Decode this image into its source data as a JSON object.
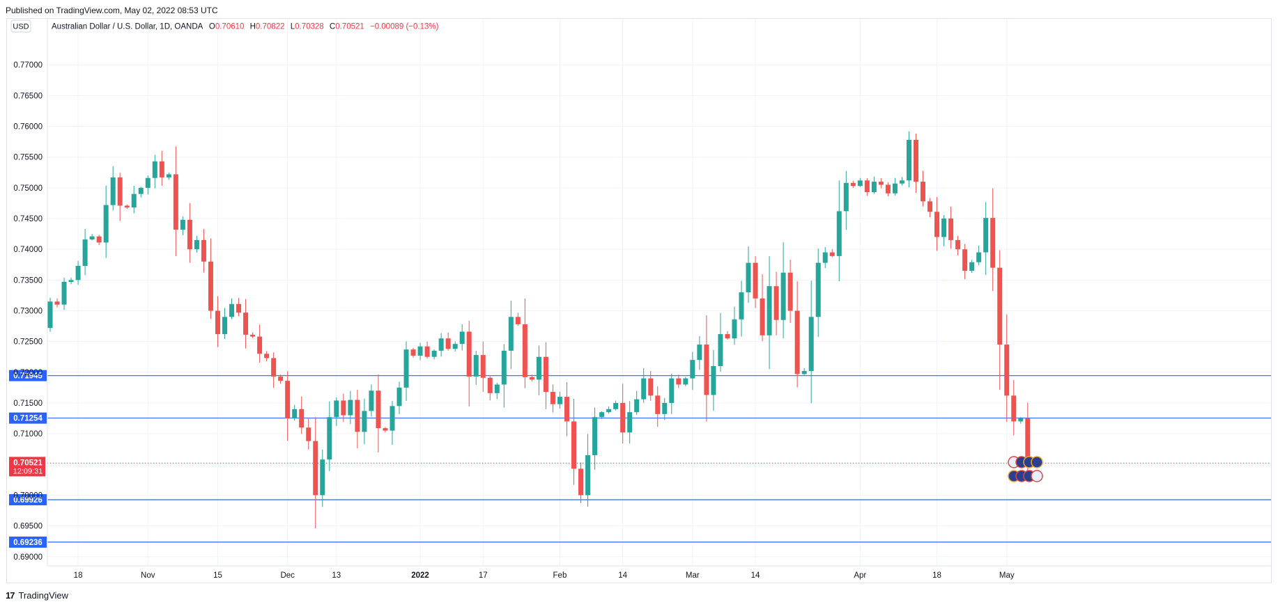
{
  "header": {
    "published": "Published on TradingView.com, May 02, 2022 08:53 UTC"
  },
  "footer": {
    "logo_glyph": "17",
    "brand": "TradingView"
  },
  "chart_data": {
    "type": "candlestick",
    "currency_badge": "USD",
    "title": "Australian Dollar / U.S. Dollar, 1D, OANDA",
    "ohlc": {
      "o_label": "O",
      "o": "0.70610",
      "h_label": "H",
      "h": "0.70822",
      "l_label": "L",
      "l": "0.70328",
      "c_label": "C",
      "c": "0.70521",
      "change": "−0.00089 (−0.13%)"
    },
    "ylim": [
      0.6885,
      0.7775
    ],
    "y_ticks": [
      "0.77000",
      "0.76500",
      "0.76000",
      "0.75500",
      "0.75000",
      "0.74500",
      "0.74000",
      "0.73500",
      "0.73000",
      "0.72500",
      "0.72000",
      "0.71500",
      "0.71000",
      "0.70500",
      "0.70000",
      "0.69500",
      "0.69000"
    ],
    "x_ticks": [
      {
        "label": "18",
        "i": 4
      },
      {
        "label": "Nov",
        "i": 14
      },
      {
        "label": "15",
        "i": 24
      },
      {
        "label": "Dec",
        "i": 34
      },
      {
        "label": "13",
        "i": 41
      },
      {
        "label": "2022",
        "i": 53
      },
      {
        "label": "17",
        "i": 62
      },
      {
        "label": "Feb",
        "i": 73
      },
      {
        "label": "14",
        "i": 82
      },
      {
        "label": "Mar",
        "i": 92
      },
      {
        "label": "14",
        "i": 101
      },
      {
        "label": "Apr",
        "i": 116
      },
      {
        "label": "18",
        "i": 127
      },
      {
        "label": "May",
        "i": 137
      }
    ],
    "horizontal_lines": [
      {
        "value": 0.71945,
        "label": "0.71945",
        "color": "#2962ff"
      },
      {
        "value": 0.71254,
        "label": "0.71254",
        "color": "#2962ff"
      },
      {
        "value": 0.69926,
        "label": "0.69926",
        "color": "#2962ff"
      },
      {
        "value": 0.69236,
        "label": "0.69236",
        "color": "#2962ff"
      }
    ],
    "last_price": {
      "value": 0.70521,
      "label": "0.70521",
      "countdown": "12:09:31",
      "color": "#f23645"
    },
    "colors": {
      "up": "#26a69a",
      "down": "#ef5350",
      "grid": "#f0f3fa",
      "axis_text": "#131722"
    },
    "closes": [
      0.7315,
      0.731,
      0.7347,
      0.735,
      0.7373,
      0.7416,
      0.7421,
      0.7411,
      0.7472,
      0.7517,
      0.7471,
      0.7468,
      0.749,
      0.75,
      0.7516,
      0.7543,
      0.7517,
      0.7522,
      0.7432,
      0.7448,
      0.74,
      0.7415,
      0.738,
      0.73,
      0.7262,
      0.729,
      0.7311,
      0.7297,
      0.7261,
      0.7258,
      0.723,
      0.7223,
      0.7193,
      0.7186,
      0.7125,
      0.714,
      0.711,
      0.7088,
      0.7,
      0.7058,
      0.7127,
      0.7154,
      0.713,
      0.7155,
      0.7103,
      0.7137,
      0.717,
      0.7109,
      0.7105,
      0.7145,
      0.7175,
      0.7237,
      0.7227,
      0.7242,
      0.7225,
      0.7235,
      0.7255,
      0.7238,
      0.7246,
      0.7266,
      0.7193,
      0.7228,
      0.7191,
      0.7166,
      0.718,
      0.7235,
      0.729,
      0.7278,
      0.7192,
      0.7188,
      0.7225,
      0.7168,
      0.7148,
      0.716,
      0.712,
      0.7043,
      0.7,
      0.7065,
      0.7127,
      0.7135,
      0.714,
      0.715,
      0.7102,
      0.7135,
      0.7156,
      0.719,
      0.7162,
      0.7132,
      0.715,
      0.719,
      0.718,
      0.719,
      0.722,
      0.7245,
      0.7163,
      0.721,
      0.7262,
      0.7255,
      0.7286,
      0.733,
      0.7378,
      0.732,
      0.726,
      0.734,
      0.7285,
      0.7362,
      0.73,
      0.7197,
      0.7202,
      0.729,
      0.7378,
      0.7395,
      0.7389,
      0.7462,
      0.7508,
      0.7503,
      0.7512,
      0.7493,
      0.751,
      0.7505,
      0.7491,
      0.7507,
      0.7512,
      0.7578,
      0.751,
      0.7478,
      0.7461,
      0.742,
      0.745,
      0.7415,
      0.74,
      0.7365,
      0.7379,
      0.7395,
      0.7451,
      0.737,
      0.7245,
      0.7162,
      0.712,
      0.7125,
      0.706,
      0.7052
    ]
  }
}
